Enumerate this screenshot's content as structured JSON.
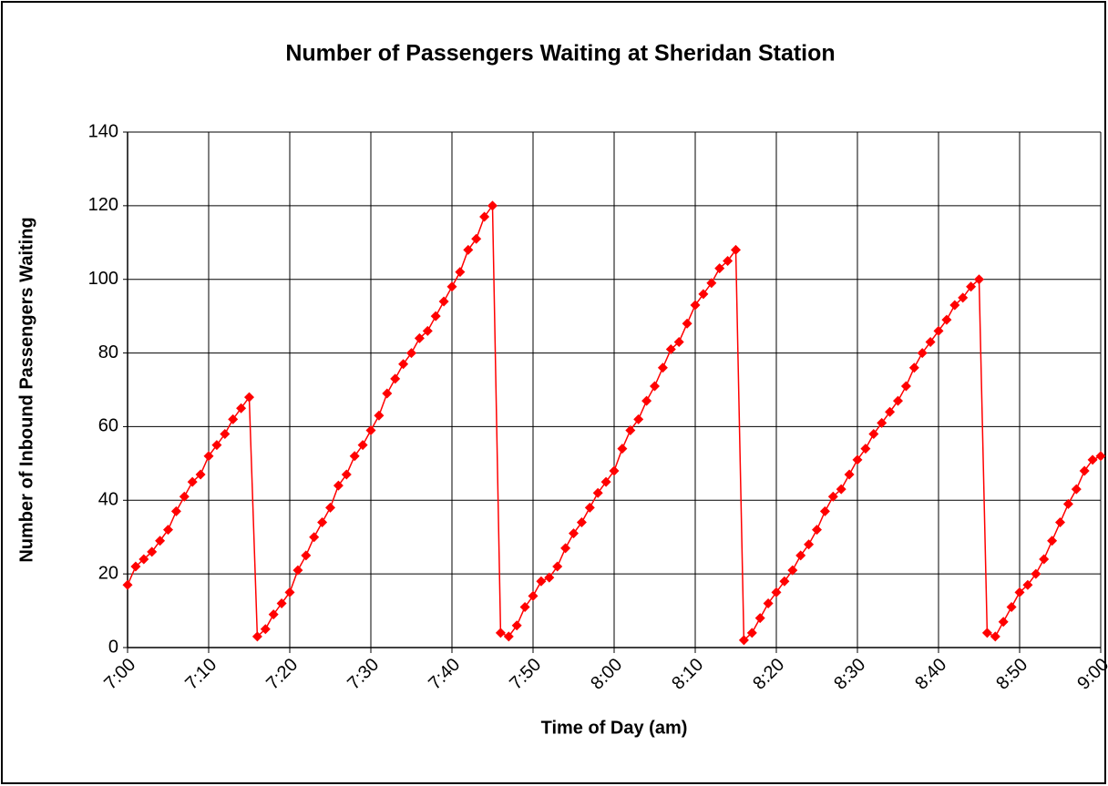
{
  "chart_data": {
    "type": "line",
    "title": "Number of Passengers Waiting at Sheridan Station",
    "x_label": "Time of Day (am)",
    "y_label": "Number of Inbound Passengers Waiting",
    "categories": [
      "7:00",
      null,
      null,
      null,
      null,
      null,
      null,
      null,
      null,
      null,
      "7:10",
      null,
      null,
      null,
      null,
      null,
      null,
      null,
      null,
      null,
      "7:20",
      null,
      null,
      null,
      null,
      null,
      null,
      null,
      null,
      null,
      "7:30",
      null,
      null,
      null,
      null,
      null,
      null,
      null,
      null,
      null,
      "7:40",
      null,
      null,
      null,
      null,
      null,
      null,
      null,
      null,
      null,
      "7:50",
      null,
      null,
      null,
      null,
      null,
      null,
      null,
      null,
      null,
      "8:00",
      null,
      null,
      null,
      null,
      null,
      null,
      null,
      null,
      null,
      "8:10",
      null,
      null,
      null,
      null,
      null,
      null,
      null,
      null,
      null,
      "8:20",
      null,
      null,
      null,
      null,
      null,
      null,
      null,
      null,
      null,
      "8:30",
      null,
      null,
      null,
      null,
      null,
      null,
      null,
      null,
      null,
      "8:40",
      null,
      null,
      null,
      null,
      null,
      null,
      null,
      null,
      null,
      "8:50",
      null,
      null,
      null,
      null,
      null,
      null,
      null,
      null,
      null,
      "9:00"
    ],
    "values": [
      17,
      22,
      24,
      26,
      29,
      32,
      37,
      41,
      45,
      47,
      52,
      55,
      58,
      62,
      65,
      68,
      3,
      5,
      9,
      12,
      15,
      21,
      25,
      30,
      34,
      38,
      44,
      47,
      52,
      55,
      59,
      63,
      69,
      73,
      77,
      80,
      84,
      86,
      90,
      94,
      98,
      102,
      108,
      111,
      117,
      120,
      4,
      3,
      6,
      11,
      14,
      18,
      19,
      22,
      27,
      31,
      34,
      38,
      42,
      45,
      48,
      54,
      59,
      62,
      67,
      71,
      76,
      81,
      83,
      88,
      93,
      96,
      99,
      103,
      105,
      108,
      2,
      4,
      8,
      12,
      15,
      18,
      21,
      25,
      28,
      32,
      37,
      41,
      43,
      47,
      51,
      54,
      58,
      61,
      64,
      67,
      71,
      76,
      80,
      83,
      86,
      89,
      93,
      95,
      98,
      100,
      4,
      3,
      7,
      11,
      15,
      17,
      20,
      24,
      29,
      34,
      39,
      43,
      48,
      51,
      52
    ],
    "color": "#ff0000",
    "ylim": [
      0,
      140
    ],
    "yticks": [
      0,
      20,
      40,
      60,
      80,
      100,
      120,
      140
    ],
    "grid": true
  }
}
